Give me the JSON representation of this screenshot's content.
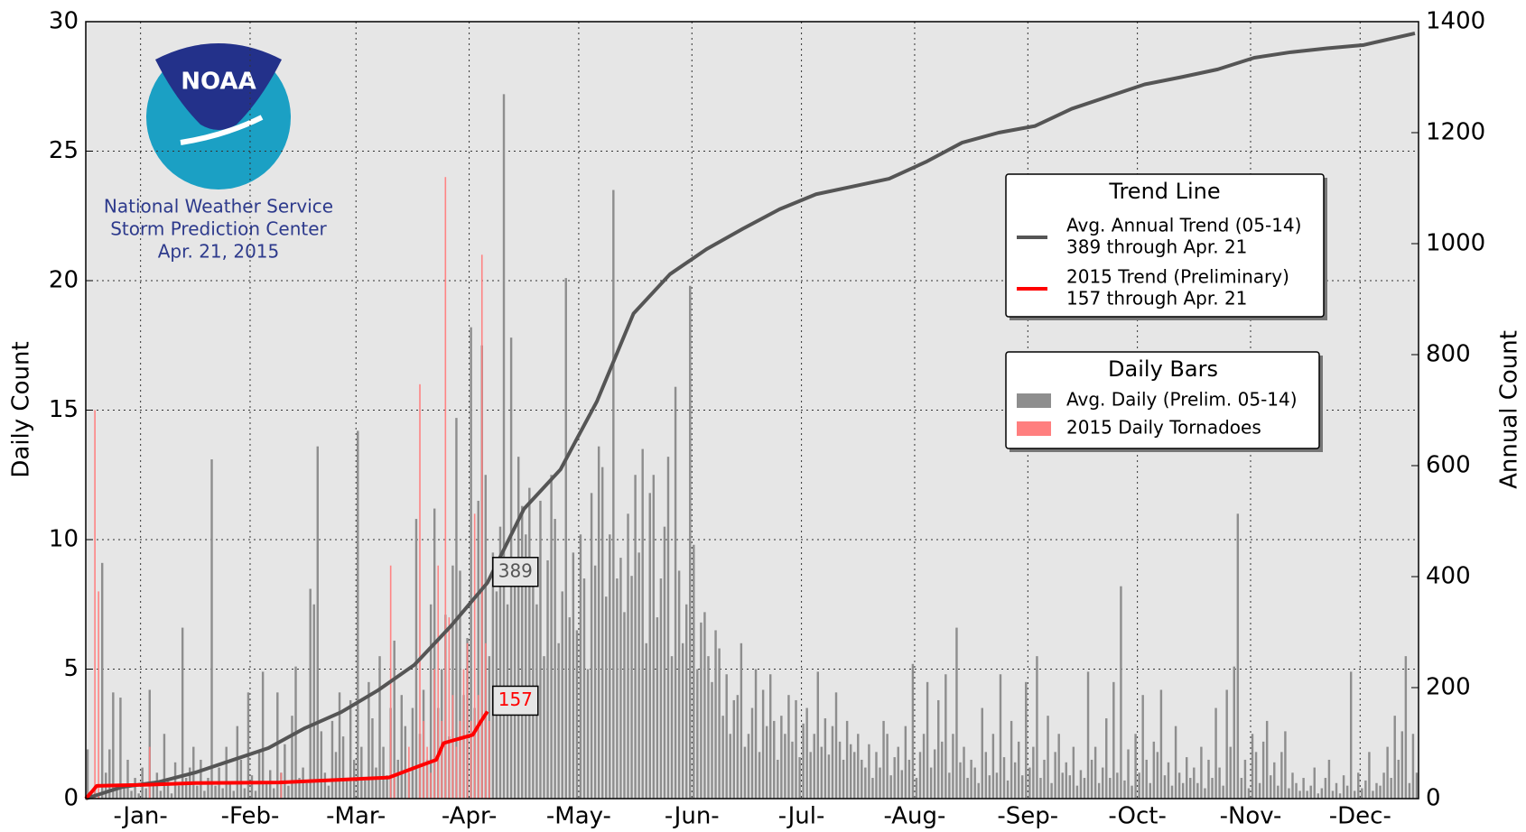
{
  "chart_data": {
    "type": "bar",
    "xlim": [
      0,
      365
    ],
    "xticks": [
      {
        "value": 15,
        "label": "-Jan-"
      },
      {
        "value": 45,
        "label": "-Feb-"
      },
      {
        "value": 74,
        "label": "-Mar-"
      },
      {
        "value": 105,
        "label": "-Apr-"
      },
      {
        "value": 135,
        "label": "-May-"
      },
      {
        "value": 166,
        "label": "-Jun-"
      },
      {
        "value": 196,
        "label": "-Jul-"
      },
      {
        "value": 227,
        "label": "-Aug-"
      },
      {
        "value": 258,
        "label": "-Sep-"
      },
      {
        "value": 288,
        "label": "-Oct-"
      },
      {
        "value": 319,
        "label": "-Nov-"
      },
      {
        "value": 349,
        "label": "-Dec-"
      }
    ],
    "ylim": [
      0,
      30
    ],
    "yticks": [
      0,
      5,
      10,
      15,
      20,
      25,
      30
    ],
    "y2lim": [
      0,
      1400
    ],
    "y2ticks": [
      0,
      200,
      400,
      600,
      800,
      1000,
      1200,
      1400
    ],
    "ylabel": "Daily Count",
    "y2label": "Annual Count",
    "grid": true,
    "bar_legend_title": "Daily Bars",
    "line_legend_title": "Trend Line",
    "series": [
      {
        "name": "Avg. Daily (Prelim. 05-14)",
        "color": "#8e8e8e",
        "values": [
          1.9,
          0.3,
          0.5,
          0.2,
          9.1,
          1.0,
          1.9,
          4.1,
          0.4,
          3.9,
          0.5,
          1.5,
          0.3,
          0.8,
          0.2,
          1.2,
          0.4,
          4.2,
          0.6,
          1.0,
          0.3,
          2.5,
          0.8,
          0.2,
          1.4,
          0.5,
          6.6,
          0.8,
          1.2,
          2.0,
          0.5,
          1.5,
          0.3,
          0.8,
          13.1,
          0.5,
          1.2,
          0.4,
          2.0,
          0.6,
          0.3,
          2.8,
          1.5,
          0.4,
          4.1,
          0.9,
          0.3,
          1.8,
          4.9,
          0.6,
          1.1,
          0.4,
          4.1,
          1.0,
          2.1,
          0.5,
          3.2,
          5.1,
          0.8,
          1.2,
          0.6,
          8.1,
          7.5,
          13.6,
          2.6,
          1.0,
          0.5,
          3.0,
          1.8,
          4.1,
          2.4,
          0.8,
          3.8,
          1.5,
          14.2,
          2.0,
          0.7,
          4.5,
          3.1,
          1.2,
          5.5,
          2.0,
          0.9,
          3.5,
          6.1,
          1.5,
          4.0,
          2.8,
          1.0,
          3.5,
          10.8,
          2.5,
          4.2,
          1.5,
          7.5,
          11.2,
          3.5,
          5.0,
          7.1,
          2.4,
          9.0,
          14.7,
          8.8,
          4.0,
          6.2,
          18.2,
          3.5,
          11.5,
          17.5,
          12.5,
          5.5,
          9.5,
          8.0,
          10.5,
          27.2,
          7.5,
          17.8,
          9.0,
          13.2,
          11.3,
          10.2,
          12.0,
          9.0,
          7.5,
          11.5,
          5.5,
          9.2,
          12.5,
          10.8,
          6.0,
          8.0,
          20.1,
          7.0,
          9.5,
          6.5,
          10.2,
          8.5,
          5.0,
          11.8,
          9.0,
          13.6,
          12.8,
          7.8,
          10.2,
          23.5,
          8.5,
          9.3,
          7.2,
          11.0,
          8.6,
          12.5,
          9.5,
          13.5,
          6.0,
          11.8,
          12.5,
          7.0,
          8.5,
          10.5,
          13.2,
          5.5,
          15.9,
          8.8,
          6.0,
          7.5,
          19.8,
          9.8,
          5.0,
          6.8,
          7.2,
          5.5,
          4.5,
          6.5,
          5.8,
          3.2,
          4.8,
          2.5,
          3.8,
          4.0,
          6.0,
          2.0,
          2.5,
          3.5,
          5.0,
          1.8,
          4.2,
          2.8,
          4.8,
          3.0,
          1.5,
          3.2,
          2.5,
          4.0,
          2.2,
          3.8,
          1.6,
          2.9,
          3.5,
          1.8,
          2.5,
          4.9,
          2.0,
          3.1,
          1.7,
          2.8,
          4.1,
          2.2,
          1.5,
          3.0,
          2.1,
          1.8,
          2.5,
          1.5,
          1.2,
          2.1,
          0.8,
          1.8,
          1.2,
          3.0,
          2.5,
          0.9,
          1.6,
          2.0,
          1.1,
          2.8,
          1.5,
          5.2,
          0.8,
          1.8,
          2.5,
          4.5,
          1.2,
          1.9,
          3.8,
          2.2,
          4.8,
          1.0,
          2.5,
          6.6,
          1.4,
          2.0,
          0.8,
          1.5,
          1.2,
          0.6,
          3.5,
          1.8,
          0.9,
          2.5,
          1.0,
          4.8,
          1.6,
          0.7,
          3.0,
          1.4,
          2.2,
          0.9,
          4.5,
          1.2,
          2.0,
          5.5,
          0.8,
          1.5,
          3.2,
          0.6,
          1.8,
          2.5,
          1.0,
          1.4,
          0.9,
          2.0,
          0.5,
          1.1,
          0.8,
          4.9,
          1.5,
          2.0,
          0.6,
          1.2,
          3.1,
          0.8,
          4.5,
          1.0,
          8.2,
          0.7,
          1.9,
          0.5,
          2.5,
          1.0,
          4.0,
          1.5,
          0.6,
          2.2,
          1.8,
          4.2,
          0.9,
          1.4,
          0.5,
          2.8,
          1.0,
          0.6,
          1.6,
          0.8,
          1.2,
          0.6,
          2.0,
          0.4,
          1.5,
          0.8,
          3.5,
          1.2,
          0.5,
          4.2,
          2.0,
          5.1,
          11.0,
          0.8,
          1.5,
          0.4,
          2.5,
          1.8,
          0.6,
          2.2,
          3.0,
          0.9,
          1.4,
          0.5,
          1.8,
          2.6,
          0.4,
          1.0,
          0.6,
          0.3,
          0.8,
          0.3,
          0.5,
          1.2,
          0.2,
          0.4,
          0.8,
          1.5,
          0.3,
          0.6,
          0.2,
          0.9,
          0.5,
          4.9,
          0.3,
          1.0,
          0.4,
          0.7,
          1.8,
          0.3,
          0.6,
          0.5,
          1.0,
          2.0,
          0.8,
          3.2,
          1.5,
          2.6,
          5.5,
          0.6,
          2.5,
          1.0
        ]
      },
      {
        "name": "2015 Daily Tornadoes",
        "color": "#ff7f7f",
        "values": [
          0,
          0,
          15,
          8,
          0,
          0,
          0,
          0,
          0,
          0,
          0,
          0,
          0,
          0,
          0,
          0,
          0,
          2,
          0,
          0,
          0,
          0,
          0,
          0,
          0,
          0,
          0,
          0,
          0,
          0,
          0,
          0,
          0,
          0,
          0,
          0,
          0,
          0,
          0,
          0,
          0,
          0,
          0,
          0,
          0,
          0,
          0,
          0,
          0,
          0,
          0,
          0,
          0,
          1,
          0,
          0,
          0,
          0,
          0,
          0,
          0,
          0,
          0,
          0,
          0,
          0,
          0,
          0,
          0,
          0,
          0,
          0,
          0,
          0,
          0,
          0,
          0,
          0,
          0,
          0,
          0,
          0,
          0,
          9,
          1,
          0,
          0,
          0,
          2,
          0,
          0,
          16,
          3,
          2,
          1,
          5,
          9,
          3,
          24,
          7,
          4,
          2,
          3,
          5,
          6,
          3,
          11,
          4,
          21,
          6,
          3
        ]
      }
    ],
    "line_series": [
      {
        "name": "Avg. Annual Trend (05-14)",
        "detail": "389 through Apr. 21",
        "color": "#555555",
        "axis": "y2",
        "x": [
          0,
          10,
          20,
          30,
          40,
          50,
          60,
          70,
          80,
          90,
          100,
          110,
          120,
          130,
          140,
          150,
          160,
          170,
          180,
          190,
          200,
          210,
          220,
          230,
          240,
          250,
          260,
          270,
          280,
          290,
          300,
          310,
          320,
          330,
          340,
          350,
          364
        ],
        "values": [
          0,
          21,
          30,
          47,
          69,
          91,
          127,
          156,
          195,
          241,
          311,
          389,
          522,
          593,
          716,
          874,
          945,
          990,
          1027,
          1062,
          1089,
          1103,
          1117,
          1147,
          1182,
          1200,
          1212,
          1243,
          1265,
          1287,
          1300,
          1314,
          1335,
          1345,
          1352,
          1358,
          1379
        ]
      },
      {
        "name": "2015 Trend (Preliminary)",
        "detail": "157 through Apr. 21",
        "color": "#ff0000",
        "axis": "y2",
        "x": [
          0,
          2,
          3,
          17,
          30,
          53,
          83,
          91,
          96,
          98,
          106,
          108,
          110
        ],
        "values": [
          0,
          15,
          23,
          25,
          28,
          29,
          38,
          58,
          70,
          100,
          115,
          137,
          157
        ]
      }
    ],
    "annotations": [
      {
        "value": 389,
        "x": 110,
        "color": "#555555"
      },
      {
        "value": 157,
        "x": 110,
        "color": "#ff0000"
      }
    ],
    "logo": {
      "text": "NOAA",
      "lines": [
        "National Weather Service",
        "Storm Prediction Center",
        "Apr. 21, 2015"
      ]
    }
  }
}
